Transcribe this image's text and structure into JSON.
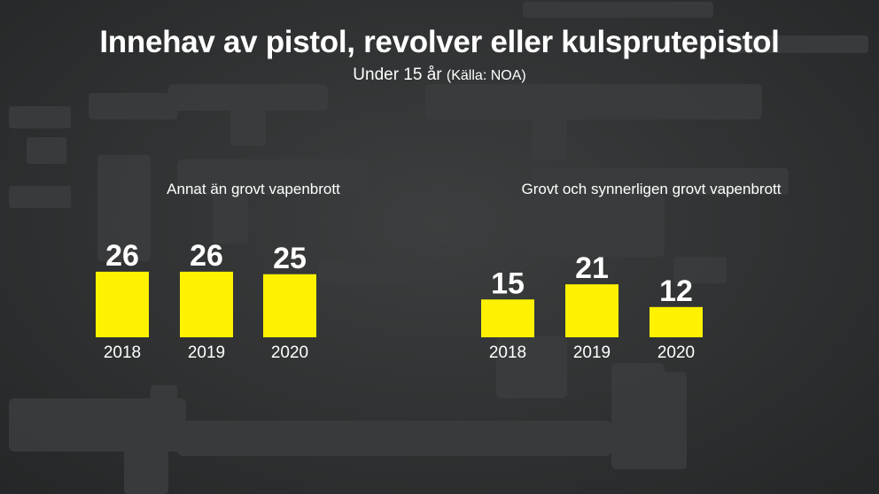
{
  "header": {
    "title": "Innehav av pistol, revolver eller kulsprutepistol",
    "subtitle_main": "Under 15 år",
    "subtitle_source": "(Källa: NOA)"
  },
  "colors": {
    "bar": "#fff200",
    "text": "#ffffff"
  },
  "chart_data": [
    {
      "type": "bar",
      "title": "Annat än grovt vapenbrott",
      "categories": [
        "2018",
        "2019",
        "2020"
      ],
      "values": [
        26,
        26,
        25
      ],
      "ylim": [
        0,
        26
      ],
      "grid": false
    },
    {
      "type": "bar",
      "title": "Grovt och synnerligen grovt vapenbrott",
      "categories": [
        "2018",
        "2019",
        "2020"
      ],
      "values": [
        15,
        21,
        12
      ],
      "ylim": [
        0,
        26
      ],
      "grid": false
    }
  ]
}
